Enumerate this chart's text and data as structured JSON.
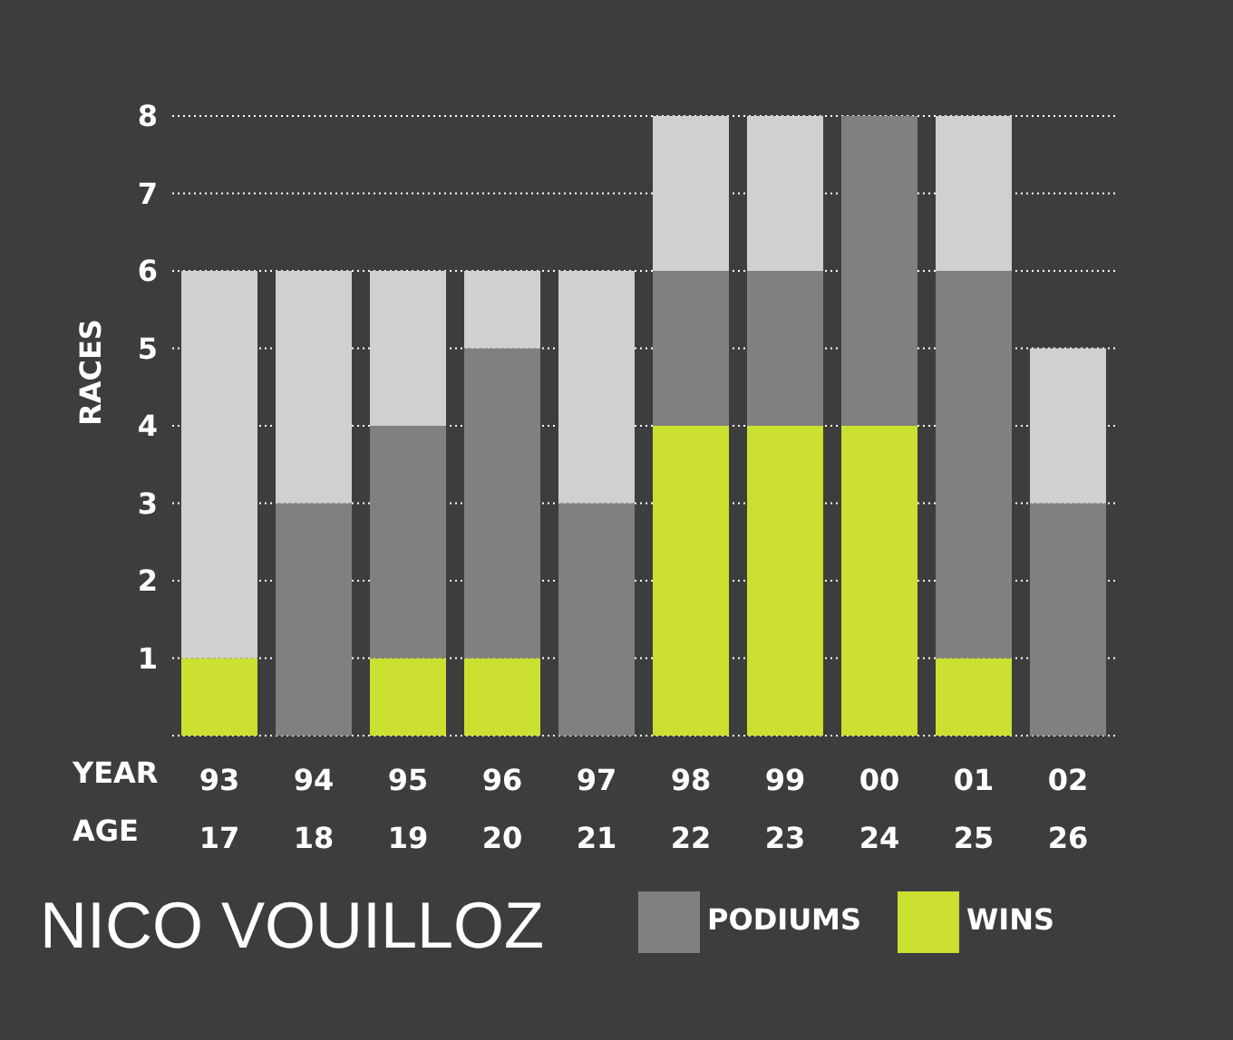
{
  "chart_data": {
    "type": "bar",
    "title": "NICO VOUILLOZ",
    "ylabel": "RACES",
    "annotations": [
      "YEAR",
      "AGE"
    ],
    "categories": [
      "93\n17",
      "94\n18",
      "95\n19",
      "96\n20",
      "97\n21",
      "98\n22",
      "99\n23",
      "00\n24",
      "01\n25",
      "02\n26"
    ],
    "stacked": true,
    "series": [
      {
        "name": "WINS",
        "color": "#cbe030",
        "values": [
          1,
          0,
          1,
          1,
          0,
          4,
          4,
          4,
          1,
          0
        ]
      },
      {
        "name": "PODIUMS",
        "color": "#808080",
        "values": [
          0,
          3,
          3,
          4,
          3,
          2,
          2,
          4,
          5,
          3
        ]
      },
      {
        "color": "#d0d0d0",
        "values": [
          5,
          3,
          2,
          1,
          3,
          2,
          2,
          0,
          2,
          2
        ]
      }
    ],
    "ylim": [
      0,
      8
    ],
    "yticks": [
      1,
      2,
      3,
      4,
      5,
      6,
      7,
      8
    ],
    "grid": "y",
    "legend": "bottom"
  }
}
